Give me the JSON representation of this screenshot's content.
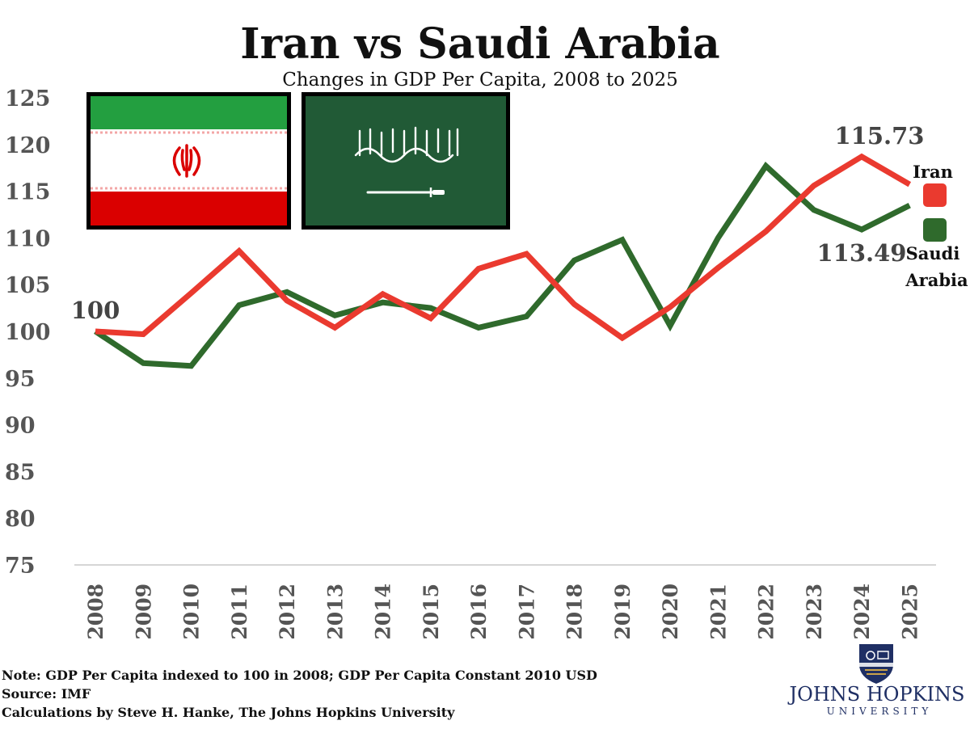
{
  "chart_data": {
    "type": "line",
    "title": "Iran vs Saudi Arabia",
    "subtitle": "Changes in GDP Per Capita, 2008 to 2025",
    "categories": [
      "2008",
      "2009",
      "2010",
      "2011",
      "2012",
      "2013",
      "2014",
      "2015",
      "2016",
      "2017",
      "2018",
      "2019",
      "2020",
      "2021",
      "2022",
      "2023",
      "2024",
      "2025"
    ],
    "ylim": [
      75,
      125
    ],
    "yticks": [
      "125",
      "120",
      "115",
      "110",
      "105",
      "100",
      "95",
      "90",
      "85",
      "80",
      "75"
    ],
    "grid": false,
    "legend_position": "right",
    "series": [
      {
        "name": "Iran",
        "color": "#ea3a2f",
        "values": [
          100.0,
          99.7,
          104.1,
          108.6,
          103.3,
          100.4,
          104.0,
          101.4,
          106.7,
          108.3,
          102.9,
          99.3,
          102.6,
          106.8,
          110.7,
          115.6,
          118.7,
          115.73
        ]
      },
      {
        "name": "Saudi Arabia",
        "color": "#2f6a2c",
        "values": [
          100.0,
          96.6,
          96.3,
          102.8,
          104.2,
          101.7,
          103.1,
          102.5,
          100.4,
          101.6,
          107.6,
          109.8,
          100.6,
          110.0,
          117.7,
          113.0,
          110.9,
          113.49
        ]
      }
    ],
    "annotations": {
      "start_value": "100",
      "iran_end_value": "115.73",
      "saudi_end_value": "113.49"
    },
    "legend": {
      "iran_label": "Iran",
      "saudi_label_line1": "Saudi",
      "saudi_label_line2": "Arabia"
    }
  },
  "flags": [
    {
      "name": "iran-flag",
      "colors": [
        "#239f40",
        "#ffffff",
        "#da0000"
      ],
      "emblem_color": "#da0000"
    },
    {
      "name": "saudi-flag",
      "color": "#215a36",
      "inscription_color": "#ffffff"
    }
  ],
  "footer": {
    "note": "Note: GDP Per Capita indexed to 100 in 2008; GDP Per Capita Constant 2010 USD",
    "source": "Source: IMF",
    "credit": "Calculations by Steve H. Hanke, The Johns Hopkins University"
  },
  "logo": {
    "name": "JOHNS HOPKINS",
    "sub": "UNIVERSITY",
    "color": "#1f2f64"
  }
}
